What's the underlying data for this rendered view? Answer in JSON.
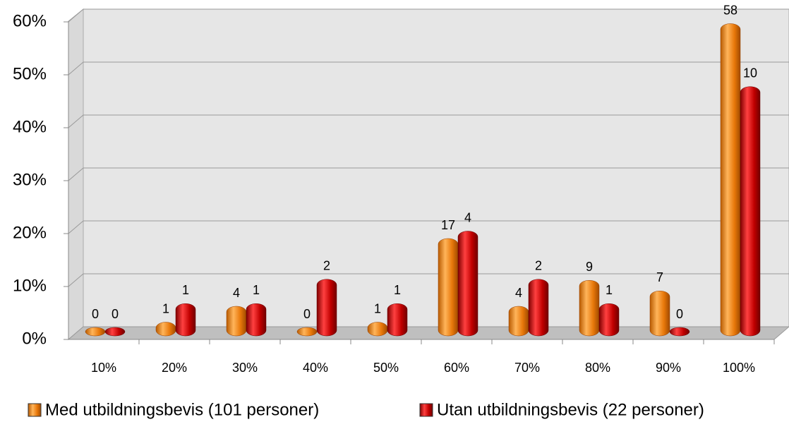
{
  "chart_data": {
    "type": "bar",
    "categories": [
      "10%",
      "20%",
      "30%",
      "40%",
      "50%",
      "60%",
      "70%",
      "80%",
      "90%",
      "100%"
    ],
    "series": [
      {
        "name": "Med utbildningsbevis (101 personer)",
        "color": "#e8780a",
        "values": [
          0,
          1.0,
          4.0,
          0,
          1.0,
          16.8,
          4.0,
          8.9,
          6.9,
          57.4
        ],
        "counts": [
          0,
          1,
          4,
          0,
          1,
          17,
          4,
          9,
          7,
          58
        ]
      },
      {
        "name": "Utan utbildningsbevis (22 personer)",
        "color": "#c00000",
        "values": [
          0,
          4.5,
          4.5,
          9.1,
          4.5,
          18.2,
          9.1,
          4.5,
          0,
          45.5
        ],
        "counts": [
          0,
          1,
          1,
          2,
          1,
          4,
          2,
          1,
          0,
          10
        ]
      }
    ],
    "ylim": [
      0,
      60
    ],
    "yticks": [
      {
        "value": 0,
        "label": "0%"
      },
      {
        "value": 10,
        "label": "10%"
      },
      {
        "value": 20,
        "label": "20%"
      },
      {
        "value": 30,
        "label": "30%"
      },
      {
        "value": 40,
        "label": "40%"
      },
      {
        "value": 50,
        "label": "50%"
      },
      {
        "value": 60,
        "label": "60%"
      }
    ],
    "grid": true,
    "legend": "bottom"
  }
}
